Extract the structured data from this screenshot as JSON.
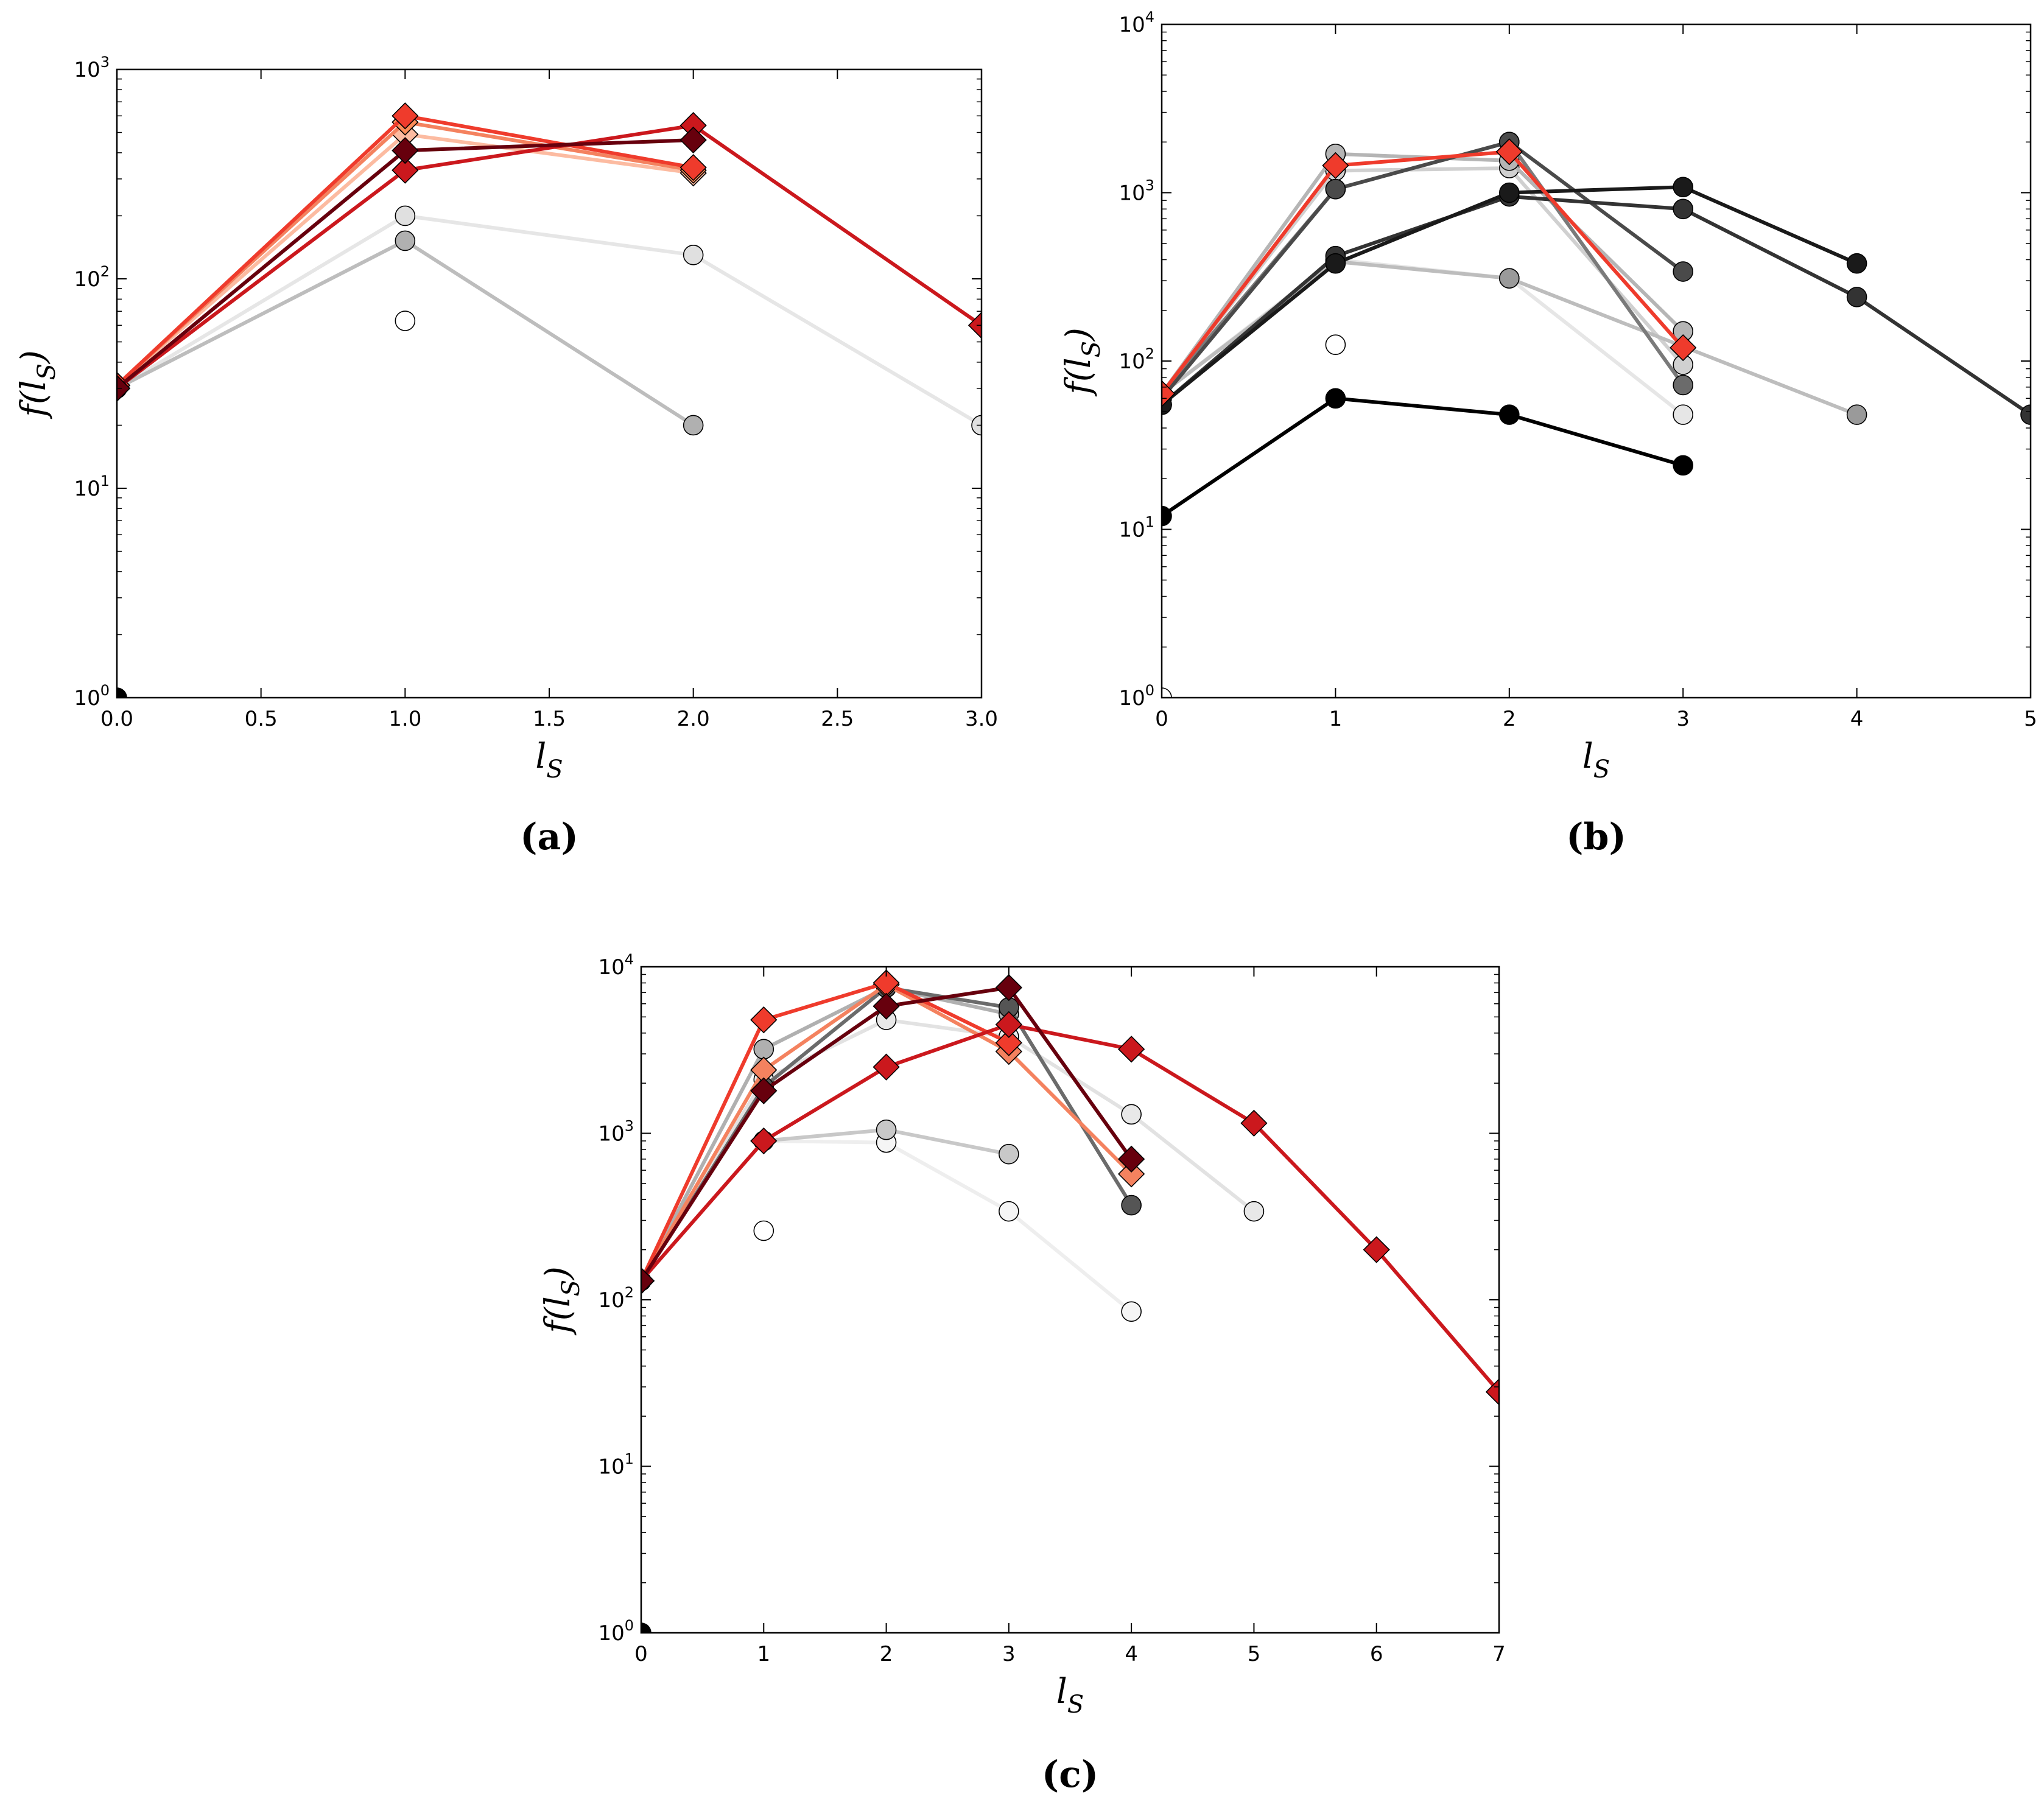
{
  "chart_data": [
    {
      "panel": "a",
      "caption": "(a)",
      "type": "line",
      "yscale": "log",
      "xlabel": "l",
      "xlabel_sub": "S",
      "ylabel": "f(l",
      "ylabel_sub": "S",
      "ylabel_close": ")",
      "xlim": [
        0,
        3
      ],
      "ylim_exp": [
        0,
        3
      ],
      "xticks": [
        0,
        0.5,
        1,
        1.5,
        2,
        2.5,
        3
      ],
      "xtick_labels": [
        "0.0",
        "0.5",
        "1.0",
        "1.5",
        "2.0",
        "2.5",
        "3.0"
      ],
      "yticks_exp": [
        0,
        1,
        2,
        3
      ],
      "series": [
        {
          "name": "gray-white",
          "marker": "circle",
          "color": "#ffffff",
          "line": "none",
          "points": [
            [
              1,
              63
            ]
          ]
        },
        {
          "name": "gray-light",
          "marker": "circle",
          "color": "#e0e0e0",
          "line": "#e6e6e6",
          "points": [
            [
              0,
              30
            ],
            [
              1,
              200
            ],
            [
              2,
              130
            ],
            [
              3,
              20
            ]
          ]
        },
        {
          "name": "gray-mid",
          "marker": "circle",
          "color": "#b0b0b0",
          "line": "#bdbdbd",
          "points": [
            [
              0,
              30
            ],
            [
              1,
              152
            ],
            [
              2,
              20
            ]
          ]
        },
        {
          "name": "gray-black",
          "marker": "circle",
          "color": "#000000",
          "line": "none",
          "points": [
            [
              0,
              1
            ]
          ]
        },
        {
          "name": "red-palest",
          "marker": "diamond",
          "color": "#fcbba1",
          "line": "#fcbba1",
          "points": [
            [
              0,
              31
            ],
            [
              1,
              490
            ],
            [
              2,
              320
            ]
          ]
        },
        {
          "name": "red-salmon",
          "marker": "diamond",
          "color": "#fc8d59",
          "line": "#f4825f",
          "points": [
            [
              0,
              31
            ],
            [
              1,
              560
            ],
            [
              2,
              330
            ]
          ]
        },
        {
          "name": "red-bright",
          "marker": "diamond",
          "color": "#ef3b2c",
          "line": "#ef3b2c",
          "points": [
            [
              0,
              31
            ],
            [
              1,
              600
            ],
            [
              2,
              340
            ]
          ]
        },
        {
          "name": "red-dark",
          "marker": "diamond",
          "color": "#cb181d",
          "line": "#cb181d",
          "points": [
            [
              0,
              30
            ],
            [
              1,
              330
            ],
            [
              2,
              540
            ],
            [
              3,
              60
            ]
          ]
        },
        {
          "name": "red-darkest",
          "marker": "diamond",
          "color": "#67000d",
          "line": "#67000d",
          "points": [
            [
              0,
              30
            ],
            [
              1,
              410
            ],
            [
              2,
              460
            ]
          ]
        }
      ]
    },
    {
      "panel": "b",
      "caption": "(b)",
      "type": "line",
      "yscale": "log",
      "xlabel": "l",
      "xlabel_sub": "S",
      "ylabel": "f(l",
      "ylabel_sub": "S",
      "ylabel_close": ")",
      "xlim": [
        0,
        5
      ],
      "ylim_exp": [
        0,
        4
      ],
      "xticks": [
        0,
        1,
        2,
        3,
        4,
        5
      ],
      "xtick_labels": [
        "0",
        "1",
        "2",
        "3",
        "4",
        "5"
      ],
      "yticks_exp": [
        0,
        1,
        2,
        3,
        4
      ],
      "series": [
        {
          "name": "white",
          "marker": "circle",
          "color": "#ffffff",
          "line": "none",
          "points": [
            [
              0,
              1
            ],
            [
              1,
              125
            ]
          ]
        },
        {
          "name": "very-light",
          "marker": "circle",
          "color": "#e6e6e6",
          "line": "#e6e6e6",
          "points": [
            [
              0,
              64
            ],
            [
              1,
              400
            ],
            [
              2,
              310
            ],
            [
              3,
              48
            ]
          ]
        },
        {
          "name": "light",
          "marker": "circle",
          "color": "#d0d0d0",
          "line": "#d0d0d0",
          "points": [
            [
              0,
              64
            ],
            [
              1,
              1350
            ],
            [
              2,
              1400
            ],
            [
              3,
              95
            ]
          ]
        },
        {
          "name": "light-mid",
          "marker": "circle",
          "color": "#b5b5b5",
          "line": "#b5b5b5",
          "points": [
            [
              0,
              64
            ],
            [
              1,
              1700
            ],
            [
              2,
              1550
            ],
            [
              3,
              150
            ]
          ]
        },
        {
          "name": "mid",
          "marker": "circle",
          "color": "#9a9a9a",
          "line": "#bdbdbd",
          "points": [
            [
              0,
              64
            ],
            [
              1,
              390
            ],
            [
              2,
              310
            ],
            [
              4,
              48
            ]
          ]
        },
        {
          "name": "mid-dark",
          "marker": "circle",
          "color": "#6b6b6b",
          "line": "#7a7a7a",
          "points": [
            [
              0,
              64
            ],
            [
              1,
              1050
            ],
            [
              2,
              2000
            ],
            [
              3,
              72
            ]
          ]
        },
        {
          "name": "dark",
          "marker": "circle",
          "color": "#4a4a4a",
          "line": "#4a4a4a",
          "points": [
            [
              0,
              60
            ],
            [
              1,
              1050
            ],
            [
              2,
              2000
            ],
            [
              3,
              340
            ]
          ]
        },
        {
          "name": "darker",
          "marker": "circle",
          "color": "#333333",
          "line": "#333333",
          "points": [
            [
              0,
              55
            ],
            [
              1,
              420
            ],
            [
              2,
              950
            ],
            [
              3,
              800
            ],
            [
              4,
              240
            ],
            [
              5,
              48
            ]
          ]
        },
        {
          "name": "darkest",
          "marker": "circle",
          "color": "#1a1a1a",
          "line": "#1a1a1a",
          "points": [
            [
              0,
              55
            ],
            [
              1,
              380
            ],
            [
              2,
              1000
            ],
            [
              3,
              1080
            ],
            [
              4,
              380
            ]
          ]
        },
        {
          "name": "black",
          "marker": "circle",
          "color": "#000000",
          "line": "#000000",
          "points": [
            [
              0,
              12
            ],
            [
              1,
              60
            ],
            [
              2,
              48
            ],
            [
              3,
              24
            ]
          ]
        },
        {
          "name": "red",
          "marker": "diamond",
          "color": "#ef3b2c",
          "line": "#ef3b2c",
          "points": [
            [
              0,
              64
            ],
            [
              1,
              1450
            ],
            [
              2,
              1750
            ],
            [
              3,
              120
            ]
          ]
        }
      ]
    },
    {
      "panel": "c",
      "caption": "(c)",
      "type": "line",
      "yscale": "log",
      "xlabel": "l",
      "xlabel_sub": "S",
      "ylabel": "f(l",
      "ylabel_sub": "S",
      "ylabel_close": ")",
      "xlim": [
        0,
        7
      ],
      "ylim_exp": [
        0,
        4
      ],
      "xticks": [
        0,
        1,
        2,
        3,
        4,
        5,
        6,
        7
      ],
      "xtick_labels": [
        "0",
        "1",
        "2",
        "3",
        "4",
        "5",
        "6",
        "7"
      ],
      "yticks_exp": [
        0,
        1,
        2,
        3,
        4
      ],
      "series": [
        {
          "name": "white-1",
          "marker": "circle",
          "color": "#ffffff",
          "line": "none",
          "points": [
            [
              1,
              260
            ]
          ]
        },
        {
          "name": "white-2",
          "marker": "circle",
          "color": "#f5f5f5",
          "line": "#eeeeee",
          "points": [
            [
              1,
              900
            ],
            [
              2,
              880
            ],
            [
              3,
              340
            ],
            [
              4,
              85
            ]
          ]
        },
        {
          "name": "light",
          "marker": "circle",
          "color": "#e8e8e8",
          "line": "#e2e2e2",
          "points": [
            [
              0,
              130
            ],
            [
              1,
              2100
            ],
            [
              2,
              4800
            ],
            [
              3,
              3800
            ],
            [
              4,
              1300
            ],
            [
              5,
              340
            ]
          ]
        },
        {
          "name": "light-mid",
          "marker": "circle",
          "color": "#c8c8c8",
          "line": "#c8c8c8",
          "points": [
            [
              1,
              900
            ],
            [
              2,
              1050
            ],
            [
              3,
              750
            ]
          ]
        },
        {
          "name": "mid",
          "marker": "circle",
          "color": "#b0b0b0",
          "line": "#b0b0b0",
          "points": [
            [
              0,
              130
            ],
            [
              1,
              3200
            ],
            [
              2,
              7500
            ],
            [
              3,
              5200
            ]
          ]
        },
        {
          "name": "dark",
          "marker": "circle",
          "color": "#555555",
          "line": "#6b6b6b",
          "points": [
            [
              0,
              130
            ],
            [
              1,
              1900
            ],
            [
              2,
              7500
            ],
            [
              3,
              5700
            ],
            [
              4,
              370
            ]
          ]
        },
        {
          "name": "black",
          "marker": "circle",
          "color": "#000000",
          "line": "none",
          "points": [
            [
              0,
              1
            ]
          ]
        },
        {
          "name": "red-salmon",
          "marker": "diamond",
          "color": "#f4825f",
          "line": "#f4825f",
          "points": [
            [
              0,
              130
            ],
            [
              1,
              2400
            ],
            [
              2,
              7800
            ],
            [
              3,
              3100
            ],
            [
              4,
              570
            ]
          ]
        },
        {
          "name": "red-bright",
          "marker": "diamond",
          "color": "#ef3b2c",
          "line": "#ef3b2c",
          "points": [
            [
              0,
              130
            ],
            [
              1,
              4800
            ],
            [
              2,
              8000
            ],
            [
              3,
              3500
            ]
          ]
        },
        {
          "name": "red-dark",
          "marker": "diamond",
          "color": "#cb181d",
          "line": "#cb181d",
          "points": [
            [
              0,
              130
            ],
            [
              1,
              900
            ],
            [
              2,
              2500
            ],
            [
              3,
              4500
            ],
            [
              4,
              3200
            ],
            [
              5,
              1150
            ],
            [
              6,
              200
            ],
            [
              7,
              28
            ]
          ]
        },
        {
          "name": "red-darkest",
          "marker": "diamond",
          "color": "#67000d",
          "line": "#67000d",
          "points": [
            [
              0,
              130
            ],
            [
              1,
              1800
            ],
            [
              2,
              5800
            ],
            [
              3,
              7500
            ],
            [
              4,
              700
            ]
          ]
        }
      ]
    }
  ]
}
